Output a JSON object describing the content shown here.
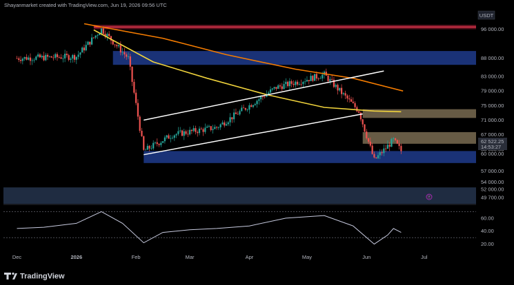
{
  "header": {
    "text": "Shayanmarket created with TradingView.com, Jun 19, 2026 09:56 UTC"
  },
  "currency": "USDT",
  "footer": {
    "brand": "TradingView",
    "logo_icon": "tradingview-logo-icon"
  },
  "price_labels": [
    "96 000.00",
    "88 000.00",
    "83 000.00",
    "79 000.00",
    "75 000.00",
    "71 000.00",
    "67 000.00",
    "63 000.00",
    "57 000.00",
    "54 000.00",
    "52 000.00",
    "49 700.00"
  ],
  "current_price": {
    "value": "62 522.25",
    "countdown": "14:53:27",
    "below": "60 000.00"
  },
  "rsi_labels": [
    "60.00",
    "40.00",
    "20.00"
  ],
  "x_labels": [
    "Dec",
    "2026",
    "Feb",
    "Mar",
    "Apr",
    "May",
    "Jun",
    "Jul"
  ],
  "colors": {
    "bull": "#26a69a",
    "bear": "#ef5350",
    "ma_yellow": "#f0d33c",
    "ma_orange": "#f57c00",
    "rsi": "#c8cbe0",
    "zone_blue": "#1f3b8c",
    "zone_red": "#b2223a",
    "zone_tan": "#8a7a5c",
    "zone_steel": "#2c3e5c"
  },
  "chart_data": {
    "type": "candlestick",
    "x_range": [
      "2025-11-24",
      "2026-07-28"
    ],
    "y_range": [
      48000,
      101000
    ],
    "price_axis_ticks": [
      96000,
      88000,
      83000,
      79000,
      75000,
      71000,
      67000,
      63000,
      57000,
      54000,
      52000,
      49700
    ],
    "candles_summary": [
      {
        "date": "2025-12-01",
        "close": 88000
      },
      {
        "date": "2026-01-01",
        "close": 88500
      },
      {
        "date": "2026-01-14",
        "close": 96000
      },
      {
        "date": "2026-01-28",
        "close": 88000
      },
      {
        "date": "2026-02-05",
        "close": 62500
      },
      {
        "date": "2026-02-20",
        "close": 67000
      },
      {
        "date": "2026-03-15",
        "close": 69000
      },
      {
        "date": "2026-04-15",
        "close": 80000
      },
      {
        "date": "2026-05-10",
        "close": 83500
      },
      {
        "date": "2026-05-28",
        "close": 73500
      },
      {
        "date": "2026-06-05",
        "close": 60000
      },
      {
        "date": "2026-06-15",
        "close": 65500
      },
      {
        "date": "2026-06-19",
        "close": 62522.25
      }
    ],
    "moving_averages": [
      {
        "color": "#f0d33c",
        "points": [
          [
            "2026-01-10",
            95800
          ],
          [
            "2026-02-10",
            87000
          ],
          [
            "2026-03-10",
            82500
          ],
          [
            "2026-04-10",
            78000
          ],
          [
            "2026-05-10",
            74500
          ],
          [
            "2026-06-05",
            73500
          ],
          [
            "2026-06-19",
            73300
          ]
        ]
      },
      {
        "color": "#f57c00",
        "points": [
          [
            "2026-01-05",
            97500
          ],
          [
            "2026-02-15",
            93500
          ],
          [
            "2026-03-20",
            89000
          ],
          [
            "2026-04-25",
            85000
          ],
          [
            "2026-05-25",
            82500
          ],
          [
            "2026-06-20",
            79000
          ]
        ]
      }
    ],
    "zones": [
      {
        "color": "red",
        "y": [
          96000,
          97200
        ]
      },
      {
        "color": "blue",
        "y": [
          86200,
          90000
        ]
      },
      {
        "color": "tan",
        "y": [
          71600,
          74000
        ]
      },
      {
        "color": "tan",
        "y": [
          64500,
          67700
        ]
      },
      {
        "color": "blue",
        "y": [
          59200,
          62500
        ]
      },
      {
        "color": "steel",
        "y": [
          48000,
          52500
        ]
      }
    ],
    "channel": {
      "upper": [
        [
          "2026-02-05",
          71000
        ],
        [
          "2026-06-10",
          84500
        ]
      ],
      "lower": [
        [
          "2026-02-05",
          61500
        ],
        [
          "2026-05-30",
          72700
        ]
      ]
    },
    "rsi": {
      "y_range": [
        10,
        80
      ],
      "levels": [
        70,
        30
      ],
      "ticks": [
        60,
        40,
        20
      ],
      "values": [
        [
          "2025-12-01",
          44
        ],
        [
          "2025-12-15",
          46
        ],
        [
          "2026-01-01",
          52
        ],
        [
          "2026-01-14",
          70
        ],
        [
          "2026-01-25",
          52
        ],
        [
          "2026-02-05",
          22
        ],
        [
          "2026-02-15",
          38
        ],
        [
          "2026-03-01",
          42
        ],
        [
          "2026-03-15",
          44
        ],
        [
          "2026-04-01",
          48
        ],
        [
          "2026-04-20",
          60
        ],
        [
          "2026-05-10",
          64
        ],
        [
          "2026-05-25",
          48
        ],
        [
          "2026-06-05",
          20
        ],
        [
          "2026-06-12",
          34
        ],
        [
          "2026-06-15",
          44
        ],
        [
          "2026-06-19",
          38
        ]
      ]
    }
  }
}
